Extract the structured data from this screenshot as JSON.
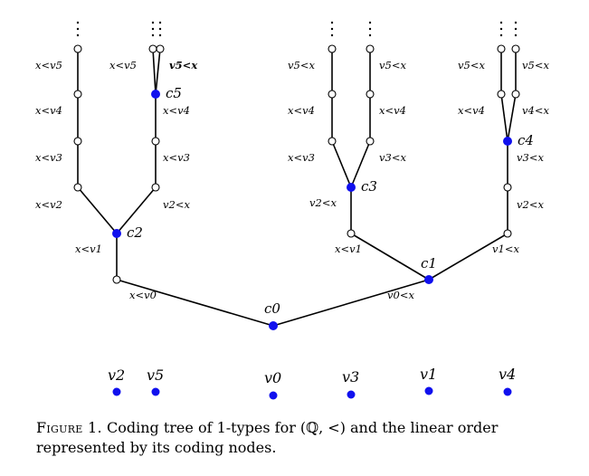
{
  "caption": {
    "prefix": "Figure 1.",
    "text": "Coding tree of 1-types for (ℚ, <) and the linear order represented by its coding nodes."
  },
  "coding_nodes": [
    {
      "id": "c0",
      "label": "c0"
    },
    {
      "id": "c1",
      "label": "c1"
    },
    {
      "id": "c2",
      "label": "c2"
    },
    {
      "id": "c3",
      "label": "c3"
    },
    {
      "id": "c4",
      "label": "c4"
    },
    {
      "id": "c5",
      "label": "c5"
    }
  ],
  "edge_labels": {
    "c0_left": "x<v0",
    "c0_right": "v0<x",
    "left_x_lt_v1": "x<v1",
    "c2_left_1": "x<v2",
    "c2_left_2": "x<v3",
    "c2_left_3": "x<v4",
    "c2_left_4": "x<v5",
    "c2_right_1": "v2<x",
    "c2_right_2": "x<v3",
    "c2_right_3": "x<v4",
    "c5_left": "x<v5",
    "c5_right": "v5<x",
    "right_x_lt_v1": "x<v1",
    "right_v1_lt_x": "v1<x",
    "c3_left_1": "v2<x",
    "c3_left_2": "x<v3",
    "c3_left_3": "x<v4",
    "c3_left_4": "v5<x",
    "c3_right_1": "v3<x",
    "c3_right_2": "x<v4",
    "c3_right_3": "v5<x",
    "c4_stem_1": "v2<x",
    "c4_stem_2": "v3<x",
    "c4_left_1": "x<v4",
    "c4_left_2": "v5<x",
    "c4_right_1": "v4<x",
    "c4_right_2": "v5<x"
  },
  "linear_order": [
    {
      "label": "v2"
    },
    {
      "label": "v5"
    },
    {
      "label": "v0"
    },
    {
      "label": "v3"
    },
    {
      "label": "v1"
    },
    {
      "label": "v4"
    }
  ],
  "colors": {
    "coding_node": "#1010ee",
    "edges": "#000000"
  }
}
